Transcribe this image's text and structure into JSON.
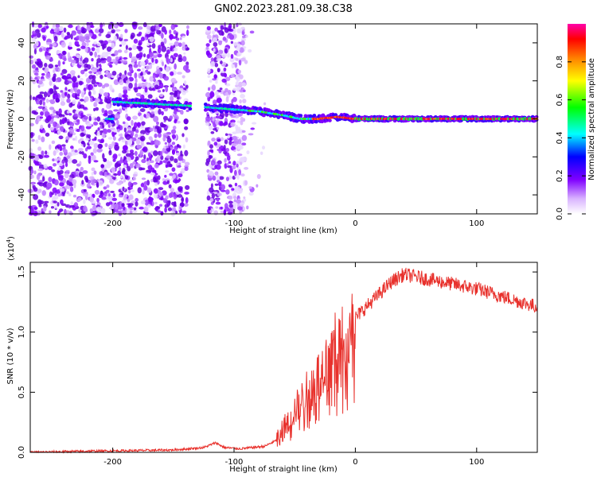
{
  "title": "GN02.2023.281.09.38.C38",
  "chart_data": [
    {
      "type": "heatmap",
      "xlabel": "Height of straight line (km)",
      "ylabel": "Frequency (Hz)",
      "xlim": [
        -268,
        150
      ],
      "ylim": [
        -50,
        50
      ],
      "xticks": [
        -200,
        -100,
        0,
        100
      ],
      "yticks": [
        -40,
        -20,
        0,
        20,
        40
      ],
      "colorbar": {
        "label": "Normalized spectral amplitude",
        "range": [
          0,
          1
        ],
        "ticks": [
          "0.0",
          "0.2",
          "0.4",
          "0.6",
          "0.8"
        ],
        "colors": [
          "#ffffff",
          "#d9b3ff",
          "#8000ff",
          "#0000ff",
          "#00ffff",
          "#00ff00",
          "#ffff00",
          "#ff8000",
          "#ff0000",
          "#ff00aa"
        ]
      },
      "ridge": {
        "x": [
          -200,
          -170,
          -140,
          -120,
          -100,
          -80,
          -60,
          -45,
          -30,
          -15,
          0,
          50,
          100,
          150
        ],
        "y": [
          9,
          8,
          7,
          6,
          5,
          4,
          2,
          0,
          0,
          1,
          0,
          0,
          0,
          0
        ]
      },
      "noise_region_x": [
        -268,
        -90
      ],
      "gap_x": [
        -138,
        -122
      ]
    },
    {
      "type": "line",
      "xlabel": "Height of straight line (km)",
      "ylabel": "SNR (10 * v/v)",
      "multiplier": "(x10",
      "multiplier_exp": "4",
      "multiplier_close": ")",
      "xlim": [
        -268,
        150
      ],
      "ylim": [
        0,
        1.58
      ],
      "xticks": [
        -200,
        -100,
        0,
        100
      ],
      "yticks": [
        "0.0",
        "0.5",
        "1.0",
        "1.5"
      ],
      "color": "#e8312c",
      "series": {
        "x": [
          -268,
          -220,
          -180,
          -150,
          -125,
          -115,
          -108,
          -95,
          -75,
          -65,
          -58,
          -50,
          -40,
          -30,
          -20,
          -10,
          0,
          10,
          20,
          30,
          40,
          50,
          60,
          70,
          80,
          90,
          100,
          110,
          120,
          130,
          140,
          150
        ],
        "y": [
          0.0,
          0.01,
          0.015,
          0.02,
          0.04,
          0.08,
          0.04,
          0.03,
          0.05,
          0.1,
          0.22,
          0.35,
          0.5,
          0.65,
          0.85,
          1.0,
          1.12,
          1.22,
          1.32,
          1.42,
          1.48,
          1.46,
          1.44,
          1.42,
          1.4,
          1.38,
          1.36,
          1.33,
          1.3,
          1.27,
          1.24,
          1.21
        ]
      }
    }
  ]
}
